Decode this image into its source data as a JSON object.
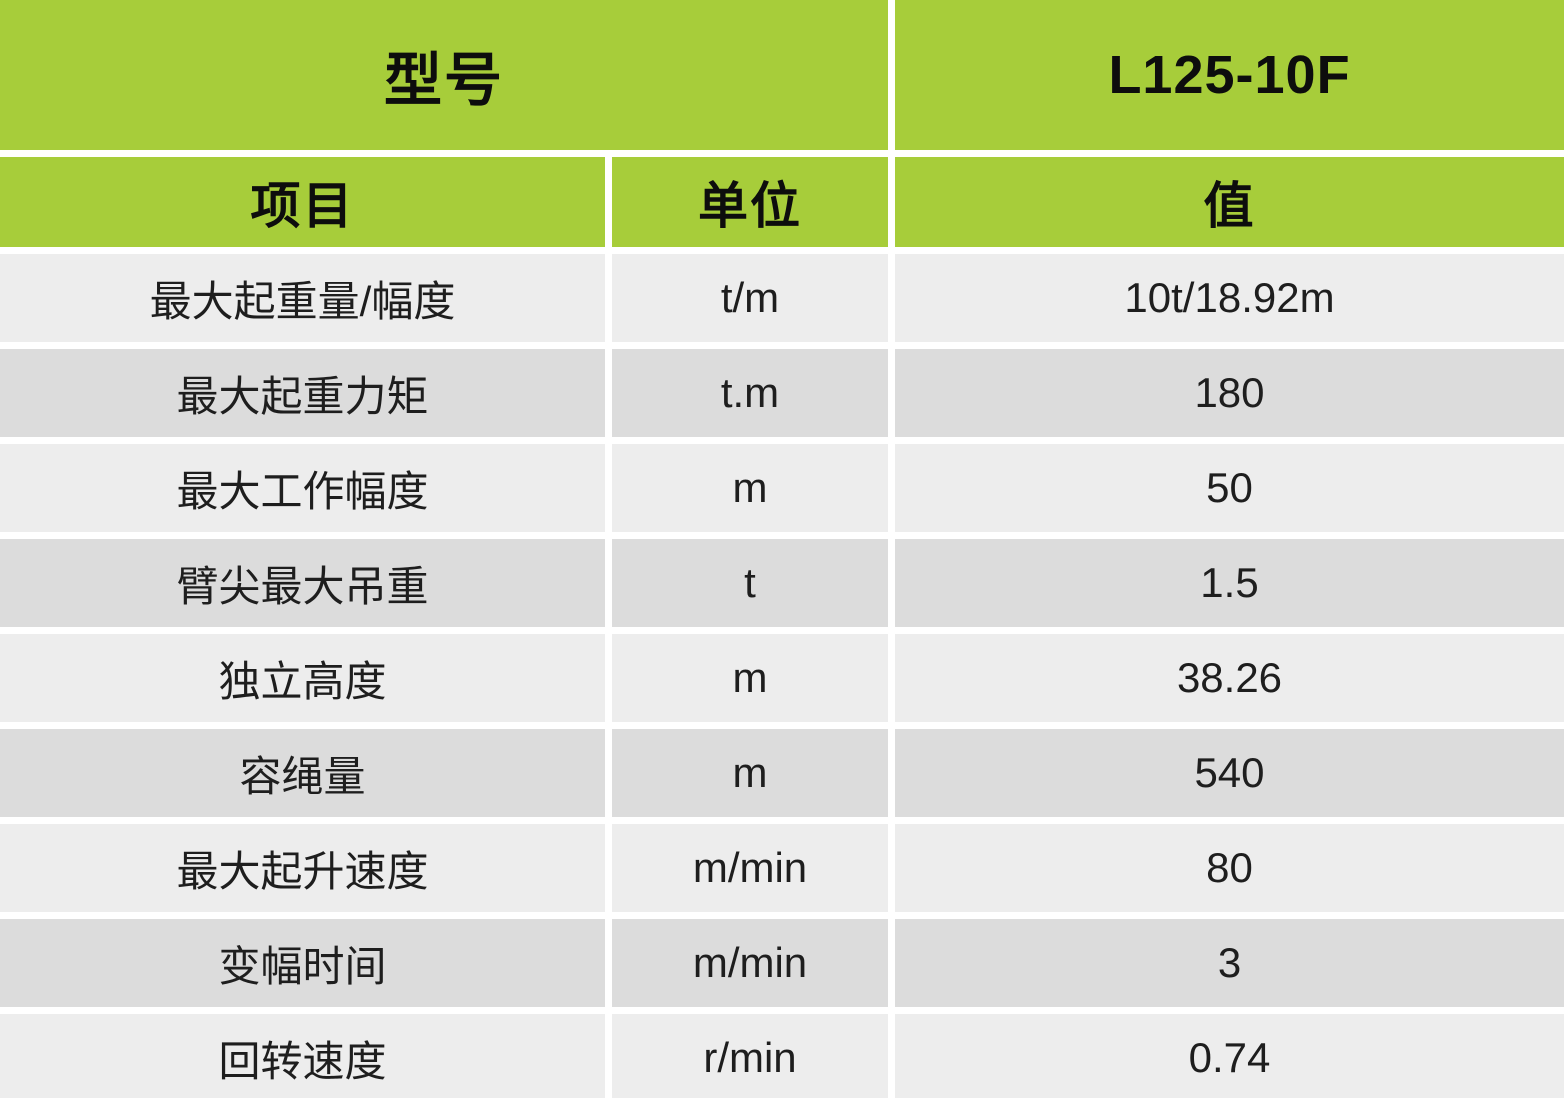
{
  "table": {
    "model_header": {
      "label": "型号",
      "value": "L125-10F"
    },
    "columns": [
      "项目",
      "单位",
      "值"
    ],
    "rows": [
      {
        "item": "最大起重量/幅度",
        "unit": "t/m",
        "value": "10t/18.92m"
      },
      {
        "item": "最大起重力矩",
        "unit": "t.m",
        "value": "180"
      },
      {
        "item": "最大工作幅度",
        "unit": "m",
        "value": "50"
      },
      {
        "item": "臂尖最大吊重",
        "unit": "t",
        "value": "1.5"
      },
      {
        "item": "独立高度",
        "unit": "m",
        "value": "38.26"
      },
      {
        "item": "容绳量",
        "unit": "m",
        "value": "540"
      },
      {
        "item": "最大起升速度",
        "unit": "m/min",
        "value": "80"
      },
      {
        "item": "变幅时间",
        "unit": "m/min",
        "value": "3"
      },
      {
        "item": "回转速度",
        "unit": "r/min",
        "value": "0.74"
      }
    ],
    "colors": {
      "header_green": "#a7cd3a",
      "row_light": "#ededed",
      "row_dark": "#dcdcdc",
      "gap_white": "#ffffff",
      "header_text": "#0d0d0d",
      "cell_text": "#1e1e1e"
    }
  },
  "chart_data": {
    "type": "table",
    "title": "型号 L125-10F",
    "columns": [
      "项目",
      "单位",
      "值"
    ],
    "rows": [
      [
        "最大起重量/幅度",
        "t/m",
        "10t/18.92m"
      ],
      [
        "最大起重力矩",
        "t.m",
        "180"
      ],
      [
        "最大工作幅度",
        "m",
        "50"
      ],
      [
        "臂尖最大吊重",
        "t",
        "1.5"
      ],
      [
        "独立高度",
        "m",
        "38.26"
      ],
      [
        "容绳量",
        "m",
        "540"
      ],
      [
        "最大起升速度",
        "m/min",
        "80"
      ],
      [
        "变幅时间",
        "m/min",
        "3"
      ],
      [
        "回转速度",
        "r/min",
        "0.74"
      ]
    ]
  }
}
